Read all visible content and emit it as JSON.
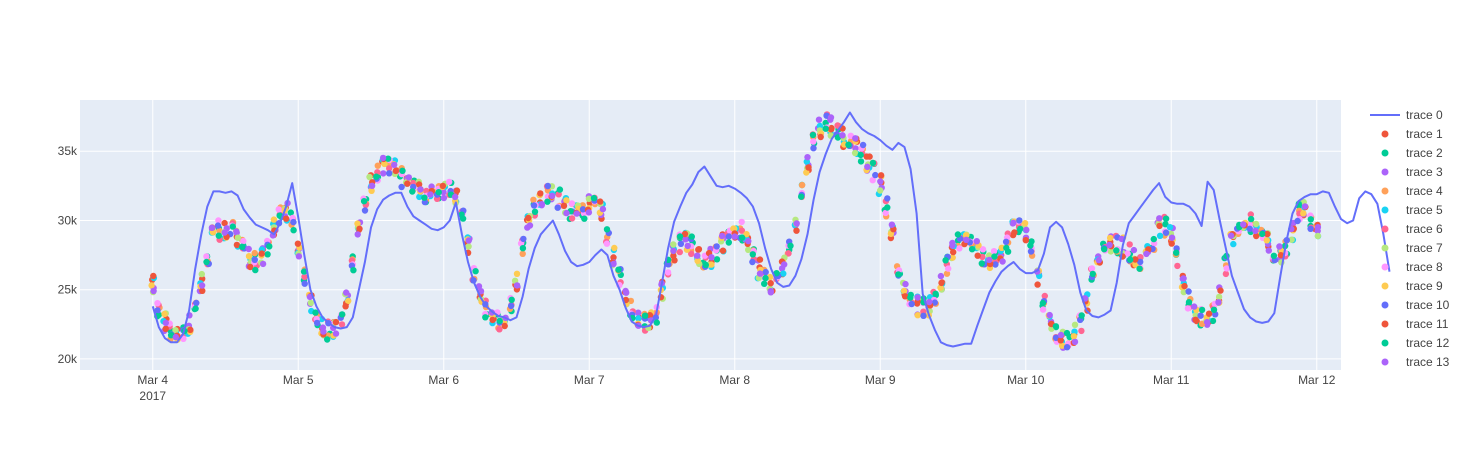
{
  "chart_data": {
    "type": "line",
    "title": "",
    "xlabel": "",
    "ylabel": "",
    "x_axis": {
      "type": "date",
      "range": [
        "2017-03-03 12:00",
        "2017-03-12 04:00"
      ],
      "ticks": [
        {
          "value": "2017-03-04",
          "label": "Mar 4",
          "sublabel": "2017"
        },
        {
          "value": "2017-03-05",
          "label": "Mar 5"
        },
        {
          "value": "2017-03-06",
          "label": "Mar 6"
        },
        {
          "value": "2017-03-07",
          "label": "Mar 7"
        },
        {
          "value": "2017-03-08",
          "label": "Mar 8"
        },
        {
          "value": "2017-03-09",
          "label": "Mar 9"
        },
        {
          "value": "2017-03-10",
          "label": "Mar 10"
        },
        {
          "value": "2017-03-11",
          "label": "Mar 11"
        },
        {
          "value": "2017-03-12",
          "label": "Mar 12"
        }
      ]
    },
    "y_axis": {
      "range": [
        19200,
        38700
      ],
      "ticks": [
        {
          "value": 20000,
          "label": "20k"
        },
        {
          "value": 25000,
          "label": "25k"
        },
        {
          "value": 30000,
          "label": "30k"
        },
        {
          "value": 35000,
          "label": "35k"
        }
      ]
    },
    "grid": true,
    "legend_position": "right",
    "series": [
      {
        "name": "trace 0",
        "mode": "lines",
        "color": "#636efa",
        "start": "2017-03-04 00:00",
        "step_hours": 1,
        "values": [
          23800,
          22300,
          21500,
          21200,
          21200,
          21800,
          23500,
          26500,
          29000,
          31000,
          32100,
          32100,
          32000,
          32100,
          31800,
          30800,
          30200,
          29700,
          29500,
          29300,
          29000,
          29800,
          31000,
          32700,
          30200,
          27500,
          25000,
          23800,
          23000,
          22600,
          22300,
          22200,
          22300,
          23000,
          25000,
          27000,
          29500,
          30800,
          31500,
          31800,
          32000,
          32000,
          31000,
          30300,
          30000,
          29700,
          29400,
          29300,
          29500,
          30000,
          31300,
          29000,
          27000,
          25500,
          24500,
          23800,
          23400,
          23100,
          23000,
          22800,
          23000,
          24500,
          26500,
          28000,
          29000,
          29500,
          30000,
          29000,
          27800,
          27000,
          26700,
          26800,
          27000,
          27500,
          27900,
          27500,
          26000,
          25000,
          23700,
          22700,
          22400,
          22300,
          22400,
          23100,
          25500,
          28000,
          29900,
          31000,
          32000,
          32600,
          33500,
          33900,
          33200,
          32500,
          32400,
          32500,
          32300,
          32000,
          31600,
          31000,
          29800,
          28000,
          26500,
          25500,
          25200,
          25300,
          26000,
          27200,
          29000,
          31500,
          33500,
          34800,
          35900,
          36500,
          37100,
          37800,
          37100,
          36600,
          36300,
          36100,
          35800,
          35400,
          35100,
          35600,
          35300,
          33700,
          30500,
          24700,
          23200,
          22100,
          21200,
          21000,
          20900,
          21000,
          21100,
          21100,
          22400,
          23600,
          24800,
          25600,
          26300,
          26700,
          27000,
          26500,
          26200,
          26200,
          26400,
          27600,
          29500,
          29900,
          29500,
          28300,
          26800,
          24800,
          23500,
          23100,
          23000,
          23200,
          23500,
          25500,
          28200,
          29800,
          30400,
          31000,
          31600,
          32200,
          32700,
          31700,
          31300,
          31200,
          31200,
          31000,
          30500,
          29600,
          32800,
          32200,
          30000,
          28000,
          26000,
          24800,
          23600,
          23000,
          22700,
          22600,
          22700,
          23300,
          26000,
          28500,
          30500,
          31400,
          31700,
          31900,
          31900,
          32100,
          32000,
          31000,
          30100,
          29800,
          30000,
          31600,
          32100,
          31900,
          31200,
          29000,
          26300
        ]
      },
      {
        "name": "trace 1",
        "mode": "markers",
        "color": "#EF553B"
      },
      {
        "name": "trace 2",
        "mode": "markers",
        "color": "#00cc96"
      },
      {
        "name": "trace 3",
        "mode": "markers",
        "color": "#ab63fa"
      },
      {
        "name": "trace 4",
        "mode": "markers",
        "color": "#FFA15A"
      },
      {
        "name": "trace 5",
        "mode": "markers",
        "color": "#19d3f3"
      },
      {
        "name": "trace 6",
        "mode": "markers",
        "color": "#FF6692"
      },
      {
        "name": "trace 7",
        "mode": "markers",
        "color": "#B6E880"
      },
      {
        "name": "trace 8",
        "mode": "markers",
        "color": "#FF97FF"
      },
      {
        "name": "trace 9",
        "mode": "markers",
        "color": "#FECB52"
      },
      {
        "name": "trace 10",
        "mode": "markers",
        "color": "#636efa"
      },
      {
        "name": "trace 11",
        "mode": "markers",
        "color": "#EF553B"
      },
      {
        "name": "trace 12",
        "mode": "markers",
        "color": "#00cc96"
      },
      {
        "name": "trace 13",
        "mode": "markers",
        "color": "#ab63fa"
      }
    ],
    "markers_profile": {
      "start": "2017-03-04 00:00",
      "step_hours": 1,
      "values": [
        25500,
        23700,
        22700,
        22100,
        21900,
        22000,
        22500,
        23500,
        25500,
        27500,
        28800,
        29300,
        29400,
        29200,
        28700,
        28000,
        27300,
        27000,
        27400,
        28200,
        29500,
        30400,
        30600,
        29900,
        28100,
        25800,
        24000,
        22900,
        22300,
        22100,
        22200,
        22900,
        24500,
        27000,
        29500,
        31300,
        32600,
        33400,
        33900,
        34000,
        33700,
        33100,
        32600,
        32300,
        32200,
        32000,
        31800,
        31900,
        32200,
        32400,
        31700,
        30100,
        28100,
        26100,
        24600,
        23600,
        23000,
        22800,
        22900,
        23700,
        25700,
        28000,
        29800,
        30900,
        31600,
        31900,
        32000,
        31600,
        31000,
        30600,
        30500,
        30700,
        31100,
        31400,
        30800,
        29000,
        27400,
        25900,
        24600,
        23600,
        23000,
        22700,
        22700,
        23300,
        25000,
        26800,
        27800,
        28300,
        28500,
        28200,
        27500,
        27200,
        27300,
        27700,
        28300,
        28800,
        29200,
        29200,
        28500,
        27500,
        26500,
        25800,
        25500,
        25800,
        26700,
        28000,
        29800,
        31900,
        33900,
        35600,
        36600,
        37000,
        36800,
        36300,
        36000,
        35700,
        35400,
        34900,
        34200,
        33600,
        32600,
        31000,
        29000,
        26700,
        25000,
        24200,
        23800,
        23700,
        23800,
        24300,
        25300,
        26700,
        27800,
        28300,
        28600,
        28400,
        28000,
        27500,
        27000,
        27100,
        27700,
        28400,
        29300,
        29700,
        29200,
        27800,
        25700,
        23900,
        22500,
        21700,
        21300,
        21400,
        21800,
        22500,
        24000,
        25900,
        27300,
        28000,
        28300,
        28300,
        28100,
        27700,
        27300,
        27100,
        27500,
        28500,
        29500,
        29600,
        28900,
        27300,
        25400,
        24200,
        23300,
        23000,
        22900,
        23300,
        24600,
        26800,
        28700,
        29700,
        29900,
        29800,
        29500,
        29000,
        28400,
        27800,
        27500,
        28000,
        29200,
        30600,
        30700,
        30000,
        29000
      ],
      "spread": 700
    }
  }
}
